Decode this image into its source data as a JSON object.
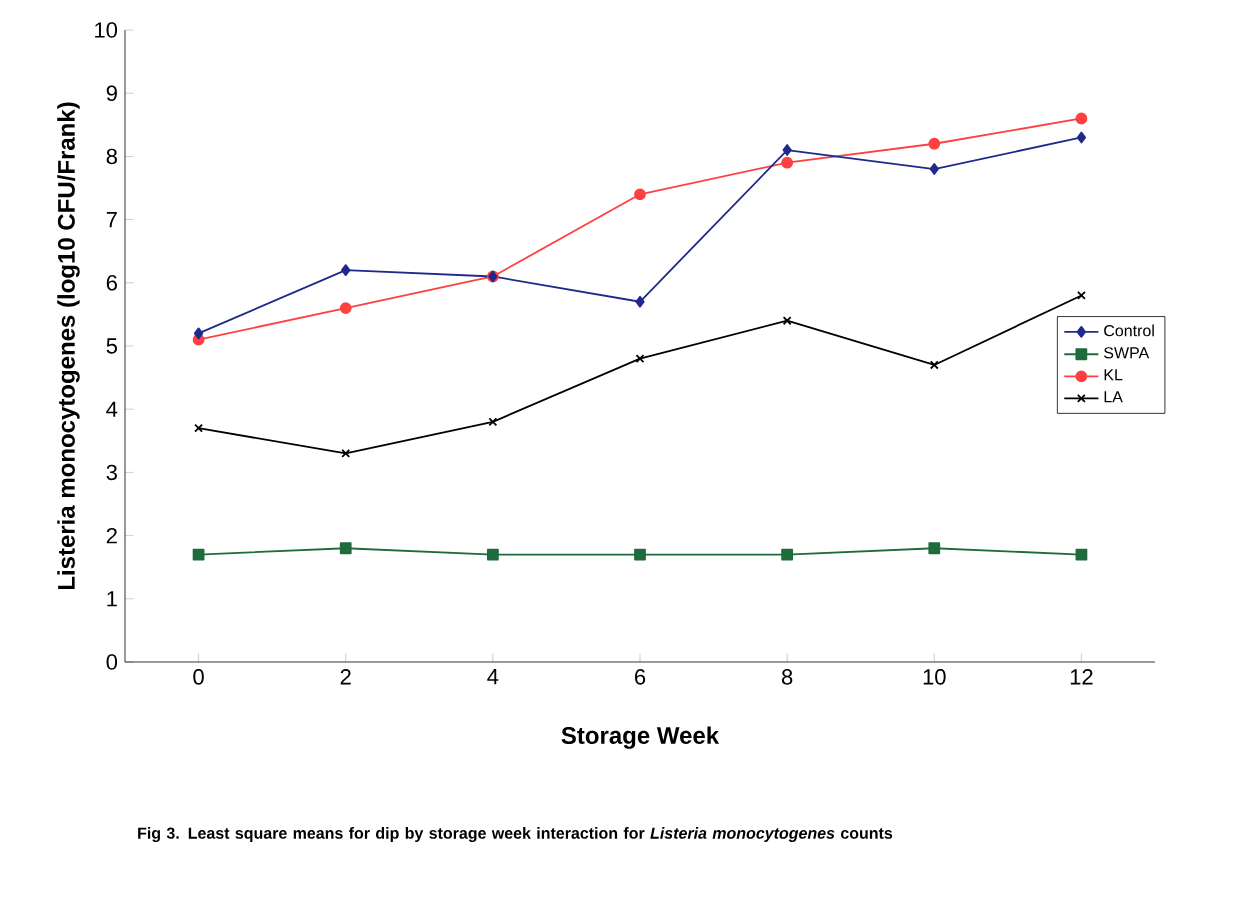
{
  "chart_data": {
    "type": "line",
    "xlabel": "Storage Week",
    "ylabel": "Listeria monocytogenes (log10 CFU/Frank)",
    "categories": [
      "0",
      "2",
      "4",
      "6",
      "8",
      "10",
      "12"
    ],
    "series": [
      {
        "name": "Control",
        "color": "#1f2a8a",
        "marker": "diamond",
        "values": [
          5.2,
          6.2,
          6.1,
          5.7,
          8.1,
          7.8,
          8.3
        ]
      },
      {
        "name": "SWPA",
        "color": "#1e6b3c",
        "marker": "square",
        "values": [
          1.7,
          1.8,
          1.7,
          1.7,
          1.7,
          1.8,
          1.7
        ]
      },
      {
        "name": "KL",
        "color": "#ff4040",
        "marker": "circle",
        "values": [
          5.1,
          5.6,
          6.1,
          7.4,
          7.9,
          8.2,
          8.6
        ]
      },
      {
        "name": "LA",
        "color": "#000000",
        "marker": "cross",
        "values": [
          3.7,
          3.3,
          3.8,
          4.8,
          5.4,
          4.7,
          5.8
        ]
      }
    ],
    "ylim": [
      0,
      10
    ],
    "yticks": [
      0,
      1,
      2,
      3,
      4,
      5,
      6,
      7,
      8,
      9,
      10
    ],
    "grid": false,
    "legend": "right",
    "line_style": "solid",
    "annotations": [
      "Fig 3.  Least square means for dip by storage week interaction for *Listeria monocytogenes* counts"
    ]
  }
}
